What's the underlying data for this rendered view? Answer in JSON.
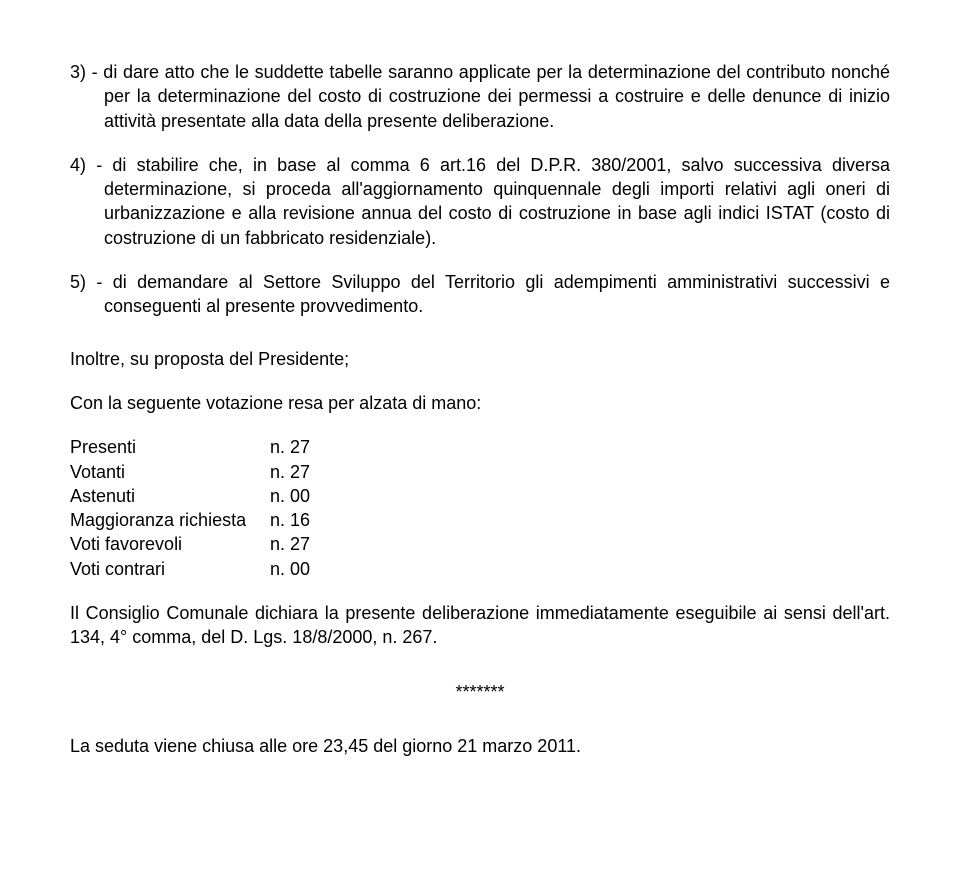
{
  "p1": "3) - di dare atto che le suddette tabelle saranno applicate per la determinazione del contributo nonché per la determinazione del costo di costruzione dei permessi a costruire e delle denunce di inizio attività presentate alla data della presente deliberazione.",
  "p2": "4) - di stabilire che, in base al comma 6 art.16 del D.P.R. 380/2001, salvo successiva diversa determinazione, si proceda all'aggiornamento quinquennale degli importi relativi agli oneri di urbanizzazione e alla revisione annua del costo di costruzione in base agli indici ISTAT (costo di costruzione di un fabbricato residenziale).",
  "p3": "5) - di demandare al Settore Sviluppo del Territorio gli adempimenti amministrativi successivi e conseguenti al presente provvedimento.",
  "p4": "Inoltre, su proposta del Presidente;",
  "p5": "Con la seguente votazione resa per alzata di mano:",
  "votes": {
    "r1": {
      "label": "Presenti",
      "value": "n. 27"
    },
    "r2": {
      "label": "Votanti",
      "value": "n. 27"
    },
    "r3": {
      "label": "Astenuti",
      "value": "n. 00"
    },
    "r4": {
      "label": "Maggioranza richiesta",
      "value": "n. 16"
    },
    "r5": {
      "label": "Voti favorevoli",
      "value": "n. 27"
    },
    "r6": {
      "label": "Voti contrari",
      "value": "n. 00"
    }
  },
  "p6": "Il Consiglio Comunale dichiara la presente deliberazione immediatamente eseguibile ai sensi dell'art. 134, 4° comma, del D. Lgs. 18/8/2000, n. 267.",
  "stars": "*******",
  "p7": "La seduta viene chiusa alle ore 23,45 del giorno 21 marzo 2011."
}
